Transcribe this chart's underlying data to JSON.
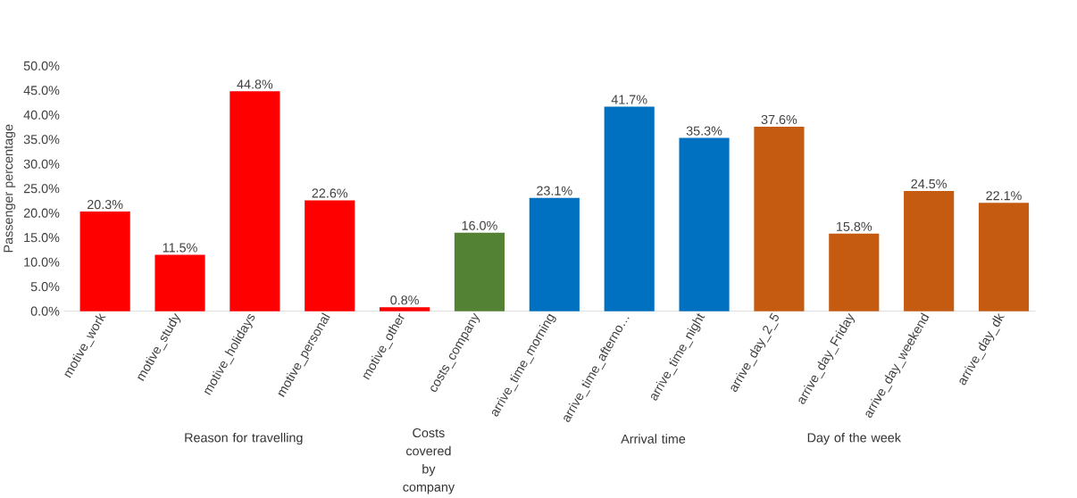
{
  "chart_data": {
    "type": "bar",
    "ylabel": "Passenger percentage",
    "categories": [
      "motive_work",
      "motive_study",
      "motive_holidays",
      "motive_personal",
      "motive_other",
      "costs_company",
      "arrive_time_morning",
      "arrive_time_afterno…",
      "arrive_time_night",
      "arrive_day_2_5",
      "arrive_day_Friday",
      "arrive_day_weekend",
      "arrive_day_dk"
    ],
    "values": [
      20.3,
      11.5,
      44.8,
      22.6,
      0.8,
      16.0,
      23.1,
      41.7,
      35.3,
      37.6,
      15.8,
      24.5,
      22.1
    ],
    "value_labels": [
      "20.3%",
      "11.5%",
      "44.8%",
      "22.6%",
      "0.8%",
      "16.0%",
      "23.1%",
      "41.7%",
      "35.3%",
      "37.6%",
      "15.8%",
      "24.5%",
      "22.1%"
    ],
    "colors": [
      "#ff0000",
      "#ff0000",
      "#ff0000",
      "#ff0000",
      "#ff0000",
      "#548235",
      "#0070c0",
      "#0070c0",
      "#0070c0",
      "#c55a11",
      "#c55a11",
      "#c55a11",
      "#c55a11"
    ],
    "ylim": [
      0,
      50
    ],
    "yticks": [
      {
        "value": 0,
        "label": "0.0%"
      },
      {
        "value": 5,
        "label": "5.0%"
      },
      {
        "value": 10,
        "label": "10.0%"
      },
      {
        "value": 15,
        "label": "15.0%"
      },
      {
        "value": 20,
        "label": "20.0%"
      },
      {
        "value": 25,
        "label": "25.0%"
      },
      {
        "value": 30,
        "label": "30.0%"
      },
      {
        "value": 35,
        "label": "35.0%"
      },
      {
        "value": 40,
        "label": "40.0%"
      },
      {
        "value": 45,
        "label": "45.0%"
      },
      {
        "value": 50,
        "label": "50.0%"
      }
    ],
    "annotations": [
      "Reason for travelling",
      "Costs covered by company",
      "Arrival time",
      "Day of the week"
    ]
  }
}
